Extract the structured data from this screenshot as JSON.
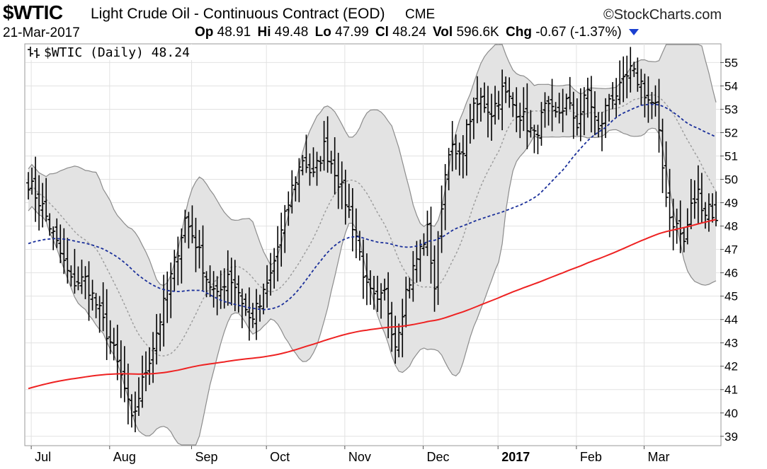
{
  "header": {
    "symbol": "$WTIC",
    "description": "Light Crude Oil - Continuous Contract (EOD)",
    "exchange": "CME",
    "brand": "©StockCharts.com",
    "date": "21-Mar-2017",
    "open_label": "Op",
    "open": "48.91",
    "high_label": "Hi",
    "high": "49.48",
    "low_label": "Lo",
    "low": "47.99",
    "close_label": "Cl",
    "close": "48.24",
    "vol_label": "Vol",
    "volume": "596.6K",
    "chg_label": "Chg",
    "change": "-0.67 (-1.37%)"
  },
  "chart_data": {
    "type": "ohlc-bar",
    "legend": "$WTIC (Daily) 48.24",
    "legend_icon": "ohlc-bars-icon",
    "ylim": [
      38.6,
      55.8
    ],
    "y_ticks": [
      39,
      40,
      41,
      42,
      43,
      44,
      45,
      46,
      47,
      48,
      49,
      50,
      51,
      52,
      53,
      54,
      55
    ],
    "x_ticks": [
      {
        "label": "Jul",
        "day": 4,
        "bold": false
      },
      {
        "label": "Aug",
        "day": 26,
        "bold": false
      },
      {
        "label": "Sep",
        "day": 49,
        "bold": false
      },
      {
        "label": "Oct",
        "day": 70,
        "bold": false
      },
      {
        "label": "Nov",
        "day": 92,
        "bold": false
      },
      {
        "label": "Dec",
        "day": 114,
        "bold": false
      },
      {
        "label": "2017",
        "day": 135,
        "bold": true
      },
      {
        "label": "Feb",
        "day": 157,
        "bold": false
      },
      {
        "label": "Mar",
        "day": 176,
        "bold": false
      }
    ],
    "day_count": 194,
    "closes_anchor": [
      [
        0,
        49.9
      ],
      [
        4,
        48.8
      ],
      [
        8,
        47.2
      ],
      [
        12,
        45.6
      ],
      [
        16,
        45.7
      ],
      [
        20,
        44.3
      ],
      [
        24,
        42.6
      ],
      [
        27,
        41.0
      ],
      [
        29,
        39.6
      ],
      [
        32,
        41.3
      ],
      [
        35,
        42.9
      ],
      [
        38,
        44.6
      ],
      [
        41,
        46.4
      ],
      [
        44,
        48.3
      ],
      [
        47,
        47.3
      ],
      [
        50,
        45.8
      ],
      [
        53,
        44.9
      ],
      [
        56,
        46.0
      ],
      [
        59,
        45.2
      ],
      [
        62,
        44.0
      ],
      [
        65,
        44.6
      ],
      [
        68,
        45.9
      ],
      [
        71,
        47.7
      ],
      [
        74,
        49.6
      ],
      [
        77,
        50.9
      ],
      [
        80,
        50.1
      ],
      [
        83,
        51.4
      ],
      [
        86,
        50.4
      ],
      [
        89,
        49.1
      ],
      [
        92,
        47.6
      ],
      [
        95,
        45.3
      ],
      [
        98,
        44.6
      ],
      [
        100,
        45.1
      ],
      [
        103,
        43.0
      ],
      [
        106,
        45.2
      ],
      [
        109,
        46.6
      ],
      [
        112,
        47.8
      ],
      [
        114,
        45.4
      ],
      [
        116,
        49.0
      ],
      [
        118,
        51.4
      ],
      [
        121,
        50.8
      ],
      [
        124,
        52.7
      ],
      [
        127,
        53.4
      ],
      [
        130,
        52.9
      ],
      [
        133,
        53.8
      ],
      [
        136,
        53.2
      ],
      [
        139,
        52.6
      ],
      [
        142,
        51.8
      ],
      [
        145,
        53.0
      ],
      [
        148,
        52.7
      ],
      [
        151,
        53.3
      ],
      [
        154,
        52.4
      ],
      [
        157,
        53.8
      ],
      [
        160,
        52.0
      ],
      [
        163,
        53.5
      ],
      [
        166,
        53.8
      ],
      [
        169,
        54.6
      ],
      [
        172,
        54.1
      ],
      [
        174,
        53.4
      ],
      [
        176,
        53.1
      ],
      [
        178,
        50.5
      ],
      [
        180,
        48.4
      ],
      [
        182,
        48.0
      ],
      [
        184,
        47.3
      ],
      [
        186,
        48.8
      ],
      [
        188,
        49.4
      ],
      [
        190,
        48.6
      ],
      [
        191,
        48.9
      ],
      [
        193,
        48.24
      ]
    ],
    "last_bar": {
      "open": 48.91,
      "high": 49.48,
      "low": 47.99,
      "close": 48.24
    },
    "series": [
      {
        "name": "OHLC price bars",
        "color": "#000000"
      },
      {
        "name": "Bollinger Bands (20,2)",
        "color": "#8c8c8c",
        "fill": "#e3e3e3"
      },
      {
        "name": "50-day moving average",
        "color": "#1a2f9a"
      },
      {
        "name": "200-day moving average",
        "color": "#ee2222"
      }
    ],
    "ma200_seed": 41.0,
    "ma50_seed": 47.2,
    "grid": true,
    "y_axis_side": "right"
  }
}
